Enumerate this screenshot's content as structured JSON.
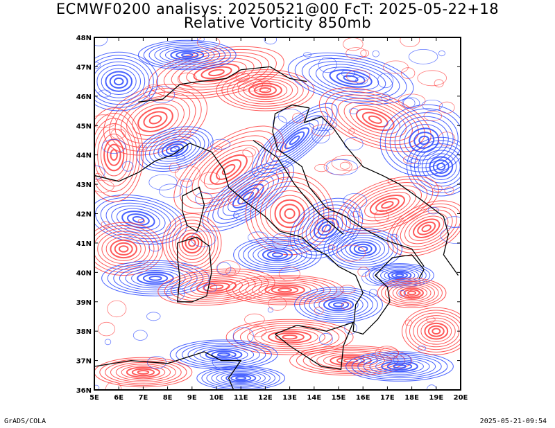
{
  "title": {
    "line1": "ECMWF0200 analisys: 20250521@00 FcT: 2025-05-22+18",
    "line2": "Relative Vorticity 850mb"
  },
  "map": {
    "lon_range": [
      5,
      20
    ],
    "lat_range": [
      36,
      48
    ],
    "lon_labels": [
      "5E",
      "6E",
      "7E",
      "8E",
      "9E",
      "10E",
      "11E",
      "12E",
      "13E",
      "14E",
      "15E",
      "16E",
      "17E",
      "18E",
      "19E",
      "20E"
    ],
    "lat_labels": [
      "36N",
      "37N",
      "38N",
      "39N",
      "40N",
      "41N",
      "42N",
      "43N",
      "44N",
      "45N",
      "46N",
      "47N",
      "48N"
    ],
    "colors": {
      "positive": "#ff3c3c",
      "negative": "#2846ff",
      "coast": "#000000"
    }
  },
  "footer": {
    "left": "GrADS/COLA",
    "right": "2025-05-21-09:54"
  }
}
